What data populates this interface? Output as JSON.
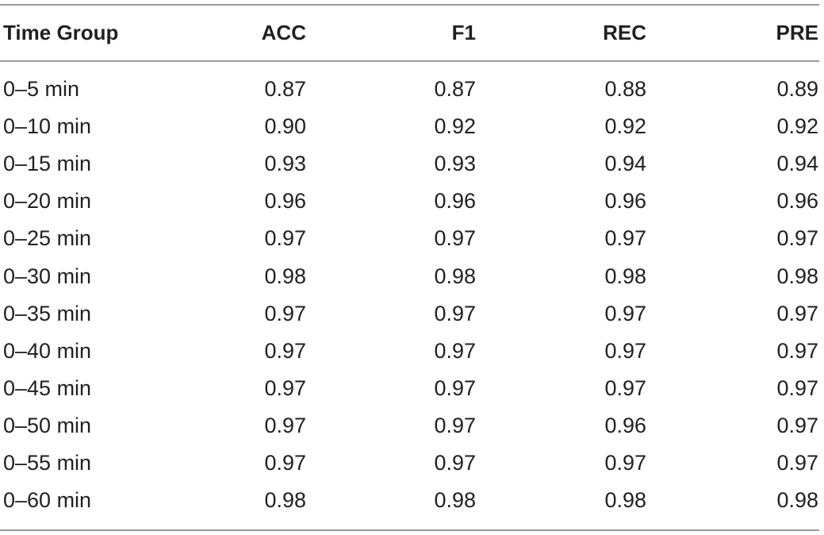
{
  "table": {
    "columns": [
      "Time Group",
      "ACC",
      "F1",
      "REC",
      "PRE"
    ],
    "rows": [
      [
        "0–5 min",
        "0.87",
        "0.87",
        "0.88",
        "0.89"
      ],
      [
        "0–10 min",
        "0.90",
        "0.92",
        "0.92",
        "0.92"
      ],
      [
        "0–15 min",
        "0.93",
        "0.93",
        "0.94",
        "0.94"
      ],
      [
        "0–20 min",
        "0.96",
        "0.96",
        "0.96",
        "0.96"
      ],
      [
        "0–25 min",
        "0.97",
        "0.97",
        "0.97",
        "0.97"
      ],
      [
        "0–30 min",
        "0.98",
        "0.98",
        "0.98",
        "0.98"
      ],
      [
        "0–35 min",
        "0.97",
        "0.97",
        "0.97",
        "0.97"
      ],
      [
        "0–40 min",
        "0.97",
        "0.97",
        "0.97",
        "0.97"
      ],
      [
        "0–45 min",
        "0.97",
        "0.97",
        "0.97",
        "0.97"
      ],
      [
        "0–50 min",
        "0.97",
        "0.97",
        "0.96",
        "0.97"
      ],
      [
        "0–55 min",
        "0.97",
        "0.97",
        "0.97",
        "0.97"
      ],
      [
        "0–60 min",
        "0.98",
        "0.98",
        "0.98",
        "0.98"
      ]
    ]
  }
}
